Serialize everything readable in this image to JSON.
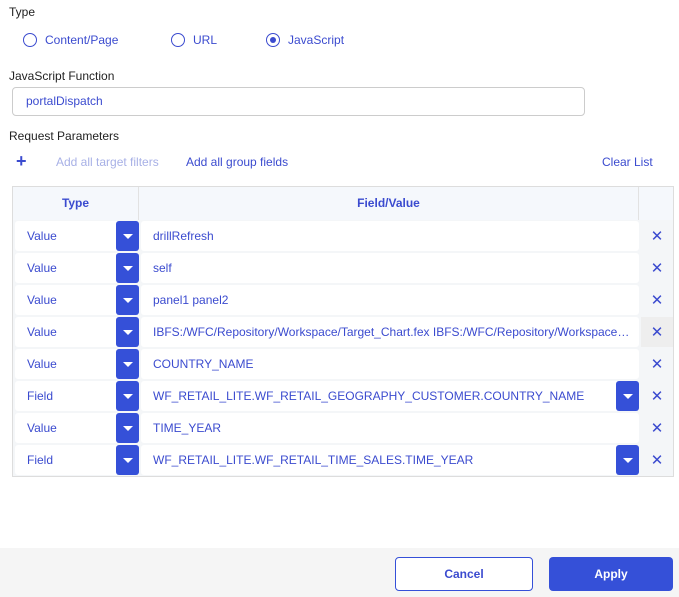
{
  "type_section": {
    "label": "Type",
    "options": [
      {
        "label": "Content/Page",
        "selected": false
      },
      {
        "label": "URL",
        "selected": false
      },
      {
        "label": "JavaScript",
        "selected": true
      }
    ]
  },
  "js_function": {
    "label": "JavaScript Function",
    "value": "portalDispatch"
  },
  "request_params": {
    "label": "Request Parameters",
    "add_icon": "plus-icon",
    "add_target_filters": "Add all target filters",
    "add_group_fields": "Add all group fields",
    "clear_list": "Clear List"
  },
  "table": {
    "headers": [
      "Type",
      "Field/Value"
    ],
    "rows": [
      {
        "type": "Value",
        "value": "drillRefresh",
        "dropdown": false
      },
      {
        "type": "Value",
        "value": "self",
        "dropdown": false
      },
      {
        "type": "Value",
        "value": "panel1 panel2",
        "dropdown": false
      },
      {
        "type": "Value",
        "value": "IBFS:/WFC/Repository/Workspace/Target_Chart.fex IBFS:/WFC/Repository/Workspace…",
        "dropdown": false
      },
      {
        "type": "Value",
        "value": "COUNTRY_NAME",
        "dropdown": false
      },
      {
        "type": "Field",
        "value": "WF_RETAIL_LITE.WF_RETAIL_GEOGRAPHY_CUSTOMER.COUNTRY_NAME",
        "dropdown": true
      },
      {
        "type": "Value",
        "value": "TIME_YEAR",
        "dropdown": false
      },
      {
        "type": "Field",
        "value": "WF_RETAIL_LITE.WF_RETAIL_TIME_SALES.TIME_YEAR",
        "dropdown": true
      }
    ]
  },
  "footer": {
    "cancel": "Cancel",
    "apply": "Apply"
  },
  "colors": {
    "accent": "#3550d8",
    "text": "#3b4bcf"
  }
}
